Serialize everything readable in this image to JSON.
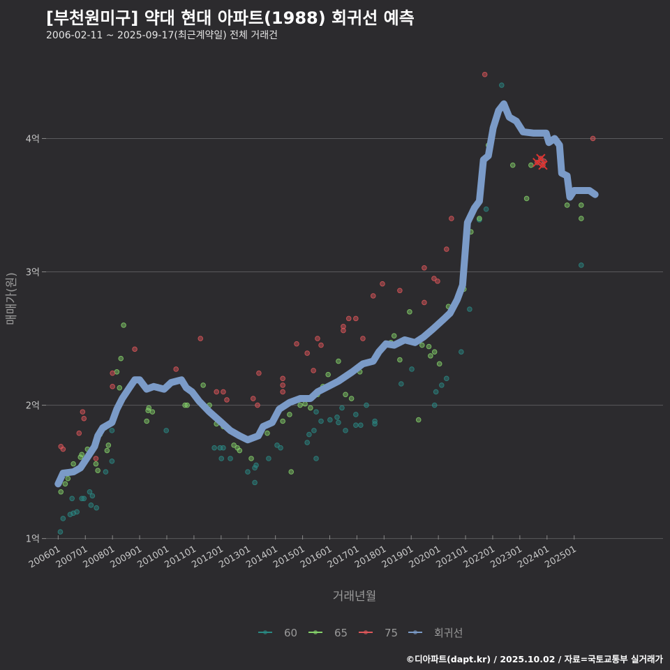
{
  "header": {
    "title": "[부천원미구] 약대 현대 아파트(1988) 회귀선 예측",
    "subtitle": "2006-02-11 ~ 2025-09-17(최근계약일) 전체 거래건"
  },
  "footer": "©디아파트(dapt.kr) / 2025.10.02 / 자료=국토교통부 실거래가",
  "chart_data": {
    "type": "scatter",
    "xlabel": "거래년월",
    "ylabel": "매매가(원)",
    "xlim": [
      2005.4,
      2028.4
    ],
    "ylim": [
      0.93,
      4.62
    ],
    "grid": true,
    "legend_position": "bottom",
    "y_ticks": [
      {
        "value": 1,
        "label": "1억"
      },
      {
        "value": 2,
        "label": "2억"
      },
      {
        "value": 3,
        "label": "3억"
      },
      {
        "value": 4,
        "label": "4억"
      }
    ],
    "x_ticks": [
      "200601",
      "200701",
      "200801",
      "200901",
      "201001",
      "201101",
      "201201",
      "201301",
      "201401",
      "201501",
      "201601",
      "201701",
      "201801",
      "201901",
      "202001",
      "202101",
      "202201",
      "202301",
      "202401",
      "202501"
    ],
    "colors": {
      "60": "#2a8a84",
      "65": "#86d36a",
      "75": "#e0575a",
      "회귀선": "#7b9bc8"
    },
    "series": [
      {
        "name": "60",
        "points": [
          [
            2006.08,
            1.05
          ],
          [
            2006.18,
            1.15
          ],
          [
            2006.44,
            1.18
          ],
          [
            2006.56,
            1.19
          ],
          [
            2006.69,
            1.2
          ],
          [
            2006.51,
            1.3
          ],
          [
            2006.87,
            1.3
          ],
          [
            2006.95,
            1.3
          ],
          [
            2007.16,
            1.35
          ],
          [
            2007.26,
            1.32
          ],
          [
            2007.21,
            1.25
          ],
          [
            2007.41,
            1.23
          ],
          [
            2007.75,
            1.5
          ],
          [
            2007.98,
            1.58
          ],
          [
            2007.98,
            1.81
          ],
          [
            2009.98,
            1.81
          ],
          [
            2011.75,
            1.68
          ],
          [
            2011.96,
            1.68
          ],
          [
            2012.08,
            1.68
          ],
          [
            2012.01,
            1.6
          ],
          [
            2012.34,
            1.6
          ],
          [
            2012.98,
            1.5
          ],
          [
            2013.24,
            1.53
          ],
          [
            2013.29,
            1.55
          ],
          [
            2013.24,
            1.42
          ],
          [
            2013.75,
            1.6
          ],
          [
            2014.06,
            1.7
          ],
          [
            2014.19,
            1.68
          ],
          [
            2015.17,
            1.72
          ],
          [
            2015.24,
            1.78
          ],
          [
            2015.42,
            1.81
          ],
          [
            2015.5,
            1.6
          ],
          [
            2015.5,
            1.95
          ],
          [
            2015.68,
            1.88
          ],
          [
            2016.01,
            1.89
          ],
          [
            2016.27,
            1.91
          ],
          [
            2016.32,
            1.87
          ],
          [
            2016.58,
            1.81
          ],
          [
            2016.45,
            1.98
          ],
          [
            2016.96,
            1.85
          ],
          [
            2017.14,
            1.85
          ],
          [
            2016.96,
            1.93
          ],
          [
            2017.35,
            2.0
          ],
          [
            2017.66,
            1.88
          ],
          [
            2017.66,
            1.86
          ],
          [
            2018.63,
            2.16
          ],
          [
            2019.02,
            2.27
          ],
          [
            2019.86,
            2.0
          ],
          [
            2019.91,
            2.1
          ],
          [
            2020.12,
            2.15
          ],
          [
            2020.3,
            2.2
          ],
          [
            2020.84,
            2.4
          ],
          [
            2021.15,
            2.72
          ],
          [
            2021.51,
            3.39
          ],
          [
            2021.76,
            3.47
          ],
          [
            2022.33,
            4.4
          ],
          [
            2025.26,
            3.05
          ]
        ]
      },
      {
        "name": "65",
        "points": [
          [
            2006.1,
            1.35
          ],
          [
            2006.26,
            1.41
          ],
          [
            2006.36,
            1.45
          ],
          [
            2006.56,
            1.56
          ],
          [
            2006.82,
            1.61
          ],
          [
            2006.87,
            1.63
          ],
          [
            2007.08,
            1.67
          ],
          [
            2007.39,
            1.56
          ],
          [
            2007.46,
            1.51
          ],
          [
            2007.8,
            1.66
          ],
          [
            2007.85,
            1.7
          ],
          [
            2007.54,
            1.78
          ],
          [
            2007.72,
            1.83
          ],
          [
            2008.16,
            2.25
          ],
          [
            2008.26,
            2.13
          ],
          [
            2008.31,
            2.35
          ],
          [
            2008.41,
            2.6
          ],
          [
            2009.26,
            1.88
          ],
          [
            2009.31,
            1.96
          ],
          [
            2009.34,
            1.98
          ],
          [
            2009.47,
            1.95
          ],
          [
            2009.65,
            2.14
          ],
          [
            2010.67,
            2.0
          ],
          [
            2010.75,
            2.0
          ],
          [
            2011.34,
            2.15
          ],
          [
            2011.57,
            2.0
          ],
          [
            2011.83,
            1.86
          ],
          [
            2012.08,
            1.84
          ],
          [
            2012.47,
            1.7
          ],
          [
            2012.6,
            1.68
          ],
          [
            2012.68,
            1.66
          ],
          [
            2013.11,
            1.6
          ],
          [
            2013.7,
            1.79
          ],
          [
            2014.27,
            1.88
          ],
          [
            2014.52,
            1.93
          ],
          [
            2014.58,
            1.5
          ],
          [
            2014.91,
            2.0
          ],
          [
            2015.09,
            2.01
          ],
          [
            2015.29,
            1.98
          ],
          [
            2015.55,
            2.08
          ],
          [
            2015.75,
            2.14
          ],
          [
            2015.94,
            2.23
          ],
          [
            2016.32,
            2.33
          ],
          [
            2016.58,
            2.08
          ],
          [
            2016.8,
            2.05
          ],
          [
            2017.11,
            2.25
          ],
          [
            2018.25,
            2.47
          ],
          [
            2018.37,
            2.52
          ],
          [
            2018.58,
            2.34
          ],
          [
            2018.94,
            2.7
          ],
          [
            2019.27,
            1.89
          ],
          [
            2019.4,
            2.45
          ],
          [
            2019.65,
            2.44
          ],
          [
            2019.71,
            2.37
          ],
          [
            2019.86,
            2.4
          ],
          [
            2020.04,
            2.31
          ],
          [
            2020.37,
            2.74
          ],
          [
            2020.73,
            2.81
          ],
          [
            2020.94,
            2.87
          ],
          [
            2021.2,
            3.3
          ],
          [
            2021.51,
            3.4
          ],
          [
            2021.84,
            3.95
          ],
          [
            2022.74,
            3.8
          ],
          [
            2023.25,
            3.55
          ],
          [
            2023.41,
            3.8
          ],
          [
            2024.74,
            3.5
          ],
          [
            2025.26,
            3.4
          ],
          [
            2025.26,
            3.5
          ]
        ]
      },
      {
        "name": "75",
        "points": [
          [
            2006.1,
            1.69
          ],
          [
            2006.18,
            1.67
          ],
          [
            2006.77,
            1.79
          ],
          [
            2006.9,
            1.95
          ],
          [
            2006.95,
            1.9
          ],
          [
            2007.39,
            1.6
          ],
          [
            2008.0,
            2.24
          ],
          [
            2008.0,
            2.14
          ],
          [
            2008.82,
            2.42
          ],
          [
            2010.34,
            2.27
          ],
          [
            2011.24,
            2.5
          ],
          [
            2011.83,
            2.1
          ],
          [
            2012.08,
            2.1
          ],
          [
            2012.21,
            2.04
          ],
          [
            2013.18,
            2.05
          ],
          [
            2013.34,
            2.0
          ],
          [
            2013.39,
            2.24
          ],
          [
            2014.27,
            2.2
          ],
          [
            2014.27,
            2.15
          ],
          [
            2014.27,
            2.1
          ],
          [
            2014.78,
            2.46
          ],
          [
            2015.17,
            2.39
          ],
          [
            2015.4,
            2.26
          ],
          [
            2015.55,
            2.5
          ],
          [
            2015.68,
            2.45
          ],
          [
            2016.5,
            2.59
          ],
          [
            2016.5,
            2.56
          ],
          [
            2016.7,
            2.65
          ],
          [
            2016.96,
            2.65
          ],
          [
            2017.22,
            2.5
          ],
          [
            2017.6,
            2.82
          ],
          [
            2017.94,
            2.91
          ],
          [
            2018.58,
            2.86
          ],
          [
            2019.48,
            3.03
          ],
          [
            2019.48,
            2.77
          ],
          [
            2019.84,
            2.95
          ],
          [
            2019.97,
            2.93
          ],
          [
            2020.3,
            3.17
          ],
          [
            2020.48,
            3.4
          ],
          [
            2021.71,
            4.48
          ],
          [
            2023.64,
            3.82
          ],
          [
            2023.77,
            3.85
          ],
          [
            2023.85,
            3.8
          ],
          [
            2023.89,
            3.83
          ],
          [
            2025.69,
            4.0
          ]
        ]
      }
    ],
    "highlight_points": [
      [
        2023.64,
        3.82
      ],
      [
        2023.77,
        3.85
      ],
      [
        2023.85,
        3.8
      ]
    ],
    "regression": {
      "name": "회귀선",
      "points": [
        [
          2006.0,
          1.41
        ],
        [
          2006.18,
          1.49
        ],
        [
          2006.56,
          1.5
        ],
        [
          2006.82,
          1.53
        ],
        [
          2007.08,
          1.61
        ],
        [
          2007.34,
          1.69
        ],
        [
          2007.46,
          1.77
        ],
        [
          2007.64,
          1.83
        ],
        [
          2007.98,
          1.87
        ],
        [
          2008.16,
          1.97
        ],
        [
          2008.36,
          2.05
        ],
        [
          2008.62,
          2.13
        ],
        [
          2008.82,
          2.19
        ],
        [
          2009.0,
          2.19
        ],
        [
          2009.26,
          2.12
        ],
        [
          2009.52,
          2.14
        ],
        [
          2009.9,
          2.12
        ],
        [
          2010.16,
          2.17
        ],
        [
          2010.54,
          2.19
        ],
        [
          2010.72,
          2.13
        ],
        [
          2010.93,
          2.1
        ],
        [
          2011.19,
          2.03
        ],
        [
          2011.57,
          1.95
        ],
        [
          2011.96,
          1.88
        ],
        [
          2012.34,
          1.81
        ],
        [
          2012.68,
          1.77
        ],
        [
          2012.98,
          1.74
        ],
        [
          2013.37,
          1.77
        ],
        [
          2013.55,
          1.84
        ],
        [
          2013.88,
          1.87
        ],
        [
          2014.14,
          1.97
        ],
        [
          2014.52,
          2.02
        ],
        [
          2014.91,
          2.05
        ],
        [
          2015.29,
          2.05
        ],
        [
          2015.55,
          2.1
        ],
        [
          2015.94,
          2.14
        ],
        [
          2016.32,
          2.18
        ],
        [
          2016.83,
          2.25
        ],
        [
          2017.22,
          2.31
        ],
        [
          2017.6,
          2.33
        ],
        [
          2017.81,
          2.4
        ],
        [
          2018.07,
          2.46
        ],
        [
          2018.37,
          2.45
        ],
        [
          2018.76,
          2.49
        ],
        [
          2019.14,
          2.47
        ],
        [
          2019.45,
          2.51
        ],
        [
          2019.79,
          2.57
        ],
        [
          2020.17,
          2.64
        ],
        [
          2020.43,
          2.69
        ],
        [
          2020.69,
          2.79
        ],
        [
          2020.89,
          2.9
        ],
        [
          2021.07,
          3.37
        ],
        [
          2021.33,
          3.48
        ],
        [
          2021.51,
          3.53
        ],
        [
          2021.66,
          3.84
        ],
        [
          2021.84,
          3.87
        ],
        [
          2022.02,
          4.08
        ],
        [
          2022.22,
          4.21
        ],
        [
          2022.41,
          4.26
        ],
        [
          2022.61,
          4.16
        ],
        [
          2022.87,
          4.13
        ],
        [
          2023.12,
          4.05
        ],
        [
          2023.51,
          4.04
        ],
        [
          2023.97,
          4.04
        ],
        [
          2024.07,
          3.97
        ],
        [
          2024.28,
          4.0
        ],
        [
          2024.46,
          3.95
        ],
        [
          2024.54,
          3.74
        ],
        [
          2024.74,
          3.72
        ],
        [
          2024.84,
          3.56
        ],
        [
          2025.0,
          3.61
        ],
        [
          2025.56,
          3.61
        ],
        [
          2025.77,
          3.58
        ]
      ]
    },
    "legend": [
      "60",
      "65",
      "75",
      "회귀선"
    ]
  }
}
